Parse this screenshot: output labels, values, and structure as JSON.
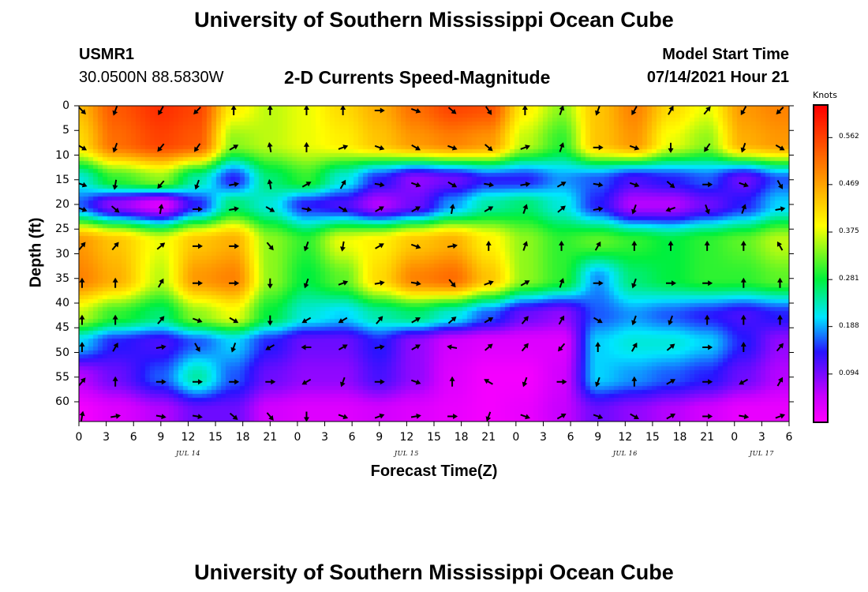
{
  "page": {
    "top_title": "University of Southern Mississippi Ocean Cube",
    "bottom_title": "University of Southern Mississippi Ocean Cube",
    "station_id": "USMR1",
    "coordinates": "30.0500N  88.5830W",
    "plot_title": "2-D Currents Speed-Magnitude",
    "model_start_label": "Model Start Time",
    "model_start_value": "07/14/2021 Hour 21"
  },
  "chart_data": {
    "type": "heatmap",
    "title": "2-D Currents Speed-Magnitude",
    "xlabel": "Forecast Time(Z)",
    "ylabel": "Depth (ft)",
    "x_tick_labels": [
      "0",
      "3",
      "6",
      "9",
      "12",
      "15",
      "18",
      "21",
      "0",
      "3",
      "6",
      "9",
      "12",
      "15",
      "18",
      "21",
      "0",
      "3",
      "6",
      "9",
      "12",
      "15",
      "18",
      "21",
      "0",
      "3",
      "6"
    ],
    "x_ticks_hours": [
      0,
      3,
      6,
      9,
      12,
      15,
      18,
      21,
      24,
      27,
      30,
      33,
      36,
      39,
      42,
      45,
      48,
      51,
      54,
      57,
      60,
      63,
      66,
      69,
      72,
      75,
      78
    ],
    "xlim_hours": [
      0,
      78
    ],
    "day_labels": [
      {
        "label": "JUL 14",
        "hour": 12
      },
      {
        "label": "JUL 15",
        "hour": 36
      },
      {
        "label": "JUL 16",
        "hour": 60
      },
      {
        "label": "JUL 17",
        "hour": 75
      }
    ],
    "y_ticks": [
      0,
      5,
      10,
      15,
      20,
      25,
      30,
      35,
      40,
      45,
      50,
      55,
      60
    ],
    "ylim": [
      0,
      64
    ],
    "colorbar": {
      "units": "Knots",
      "ticks": [
        "0.094",
        "0.188",
        "0.281",
        "0.375",
        "0.469",
        "0.562"
      ],
      "tick_values": [
        0.094,
        0.188,
        0.281,
        0.375,
        0.469,
        0.562
      ],
      "range": [
        0,
        0.625
      ]
    },
    "depths": [
      0,
      7.5,
      15,
      20,
      27.5,
      35,
      42.5,
      48,
      55,
      62
    ],
    "arrow_hours": [
      0,
      4,
      9,
      13,
      17,
      21,
      25,
      29,
      33,
      37,
      41,
      45,
      49,
      53,
      57,
      61,
      65,
      69,
      73,
      77
    ],
    "speed_grid": [
      [
        0.45,
        0.54,
        0.58,
        0.56,
        0.4,
        0.36,
        0.38,
        0.42,
        0.46,
        0.52,
        0.56,
        0.55,
        0.4,
        0.34,
        0.44,
        0.5,
        0.42,
        0.38,
        0.48,
        0.5
      ],
      [
        0.42,
        0.52,
        0.56,
        0.54,
        0.34,
        0.36,
        0.38,
        0.4,
        0.44,
        0.48,
        0.5,
        0.48,
        0.36,
        0.3,
        0.44,
        0.48,
        0.38,
        0.34,
        0.46,
        0.48
      ],
      [
        0.22,
        0.3,
        0.34,
        0.24,
        0.14,
        0.26,
        0.3,
        0.22,
        0.14,
        0.08,
        0.1,
        0.14,
        0.14,
        0.18,
        0.16,
        0.12,
        0.14,
        0.16,
        0.1,
        0.16
      ],
      [
        0.16,
        0.08,
        0.03,
        0.14,
        0.26,
        0.22,
        0.14,
        0.12,
        0.06,
        0.1,
        0.18,
        0.24,
        0.26,
        0.22,
        0.14,
        0.06,
        0.06,
        0.1,
        0.14,
        0.2
      ],
      [
        0.48,
        0.44,
        0.38,
        0.44,
        0.46,
        0.34,
        0.3,
        0.38,
        0.4,
        0.44,
        0.46,
        0.4,
        0.34,
        0.3,
        0.32,
        0.3,
        0.28,
        0.3,
        0.32,
        0.36
      ],
      [
        0.5,
        0.46,
        0.36,
        0.48,
        0.5,
        0.34,
        0.28,
        0.32,
        0.42,
        0.5,
        0.52,
        0.44,
        0.34,
        0.3,
        0.18,
        0.26,
        0.28,
        0.3,
        0.3,
        0.32
      ],
      [
        0.36,
        0.3,
        0.26,
        0.34,
        0.38,
        0.28,
        0.22,
        0.2,
        0.24,
        0.26,
        0.22,
        0.16,
        0.1,
        0.08,
        0.16,
        0.18,
        0.16,
        0.14,
        0.12,
        0.14
      ],
      [
        0.2,
        0.14,
        0.12,
        0.16,
        0.2,
        0.14,
        0.1,
        0.1,
        0.14,
        0.08,
        0.04,
        0.03,
        0.03,
        0.03,
        0.2,
        0.22,
        0.22,
        0.2,
        0.14,
        0.08
      ],
      [
        0.06,
        0.1,
        0.16,
        0.24,
        0.16,
        0.1,
        0.08,
        0.08,
        0.12,
        0.08,
        0.03,
        0.01,
        0.01,
        0.04,
        0.2,
        0.18,
        0.16,
        0.14,
        0.1,
        0.06
      ],
      [
        0.01,
        0.03,
        0.06,
        0.1,
        0.1,
        0.04,
        0.03,
        0.03,
        0.04,
        0.03,
        0.02,
        0.01,
        0.02,
        0.05,
        0.1,
        0.08,
        0.06,
        0.04,
        0.02,
        0.02
      ]
    ],
    "arrow_angles": [
      [
        135,
        200,
        210,
        225,
        0,
        0,
        0,
        0,
        90,
        110,
        130,
        145,
        0,
        20,
        200,
        210,
        30,
        40,
        210,
        225
      ],
      [
        120,
        200,
        220,
        215,
        60,
        350,
        0,
        70,
        110,
        120,
        110,
        130,
        70,
        20,
        90,
        110,
        180,
        215,
        200,
        120
      ],
      [
        110,
        190,
        220,
        200,
        80,
        350,
        60,
        30,
        100,
        110,
        120,
        100,
        80,
        60,
        100,
        110,
        130,
        90,
        110,
        150
      ],
      [
        110,
        130,
        10,
        90,
        80,
        120,
        100,
        120,
        60,
        60,
        10,
        60,
        20,
        50,
        80,
        200,
        250,
        160,
        20,
        80
      ],
      [
        40,
        40,
        50,
        90,
        90,
        140,
        200,
        190,
        60,
        110,
        80,
        0,
        20,
        0,
        30,
        0,
        0,
        0,
        0,
        330
      ],
      [
        0,
        0,
        30,
        90,
        90,
        180,
        200,
        70,
        80,
        100,
        140,
        70,
        60,
        20,
        90,
        200,
        90,
        90,
        0,
        0
      ],
      [
        0,
        0,
        40,
        110,
        120,
        180,
        240,
        240,
        40,
        60,
        50,
        60,
        40,
        30,
        120,
        200,
        200,
        0,
        0,
        0
      ],
      [
        0,
        30,
        80,
        150,
        200,
        240,
        270,
        60,
        80,
        60,
        280,
        50,
        40,
        220,
        0,
        30,
        50,
        90,
        0,
        40
      ],
      [
        40,
        0,
        90,
        90,
        90,
        90,
        240,
        200,
        90,
        110,
        0,
        300,
        200,
        90,
        200,
        0,
        60,
        90,
        240,
        30
      ],
      [
        10,
        80,
        100,
        100,
        130,
        140,
        180,
        110,
        70,
        80,
        90,
        200,
        110,
        60,
        110,
        120,
        60,
        90,
        100,
        70
      ]
    ]
  }
}
